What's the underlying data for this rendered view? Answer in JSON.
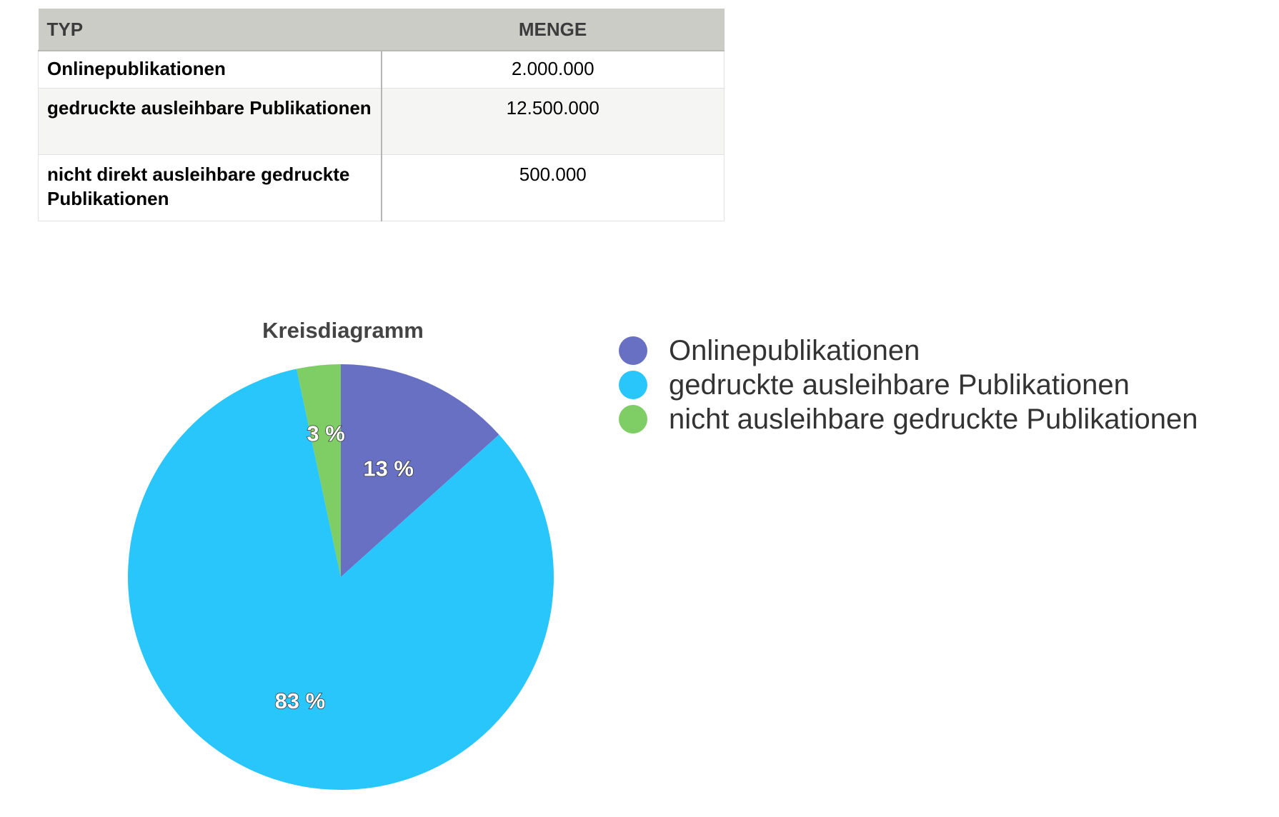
{
  "table": {
    "headers": [
      "TYP",
      "MENGE"
    ],
    "rows": [
      {
        "typ": "Onlinepublikationen",
        "menge": "2.000.000"
      },
      {
        "typ": "gedruckte ausleihbare Publikationen",
        "menge": "12.500.000"
      },
      {
        "typ": "nicht direkt ausleihbare gedruckte Publikationen",
        "menge": "500.000"
      }
    ]
  },
  "chart_data": {
    "type": "pie",
    "title": "Kreisdiagramm",
    "categories": [
      "Onlinepublikationen",
      "gedruckte ausleihbare Publikationen",
      "nicht ausleihbare gedruckte Publikationen"
    ],
    "values": [
      2000000,
      12500000,
      500000
    ],
    "labels": [
      "13 %",
      "83 %",
      "3 %"
    ],
    "colors": [
      "#6870c4",
      "#29c6fb",
      "#7ecd65"
    ],
    "legend": "right",
    "start_angle": "top-clockwise"
  }
}
